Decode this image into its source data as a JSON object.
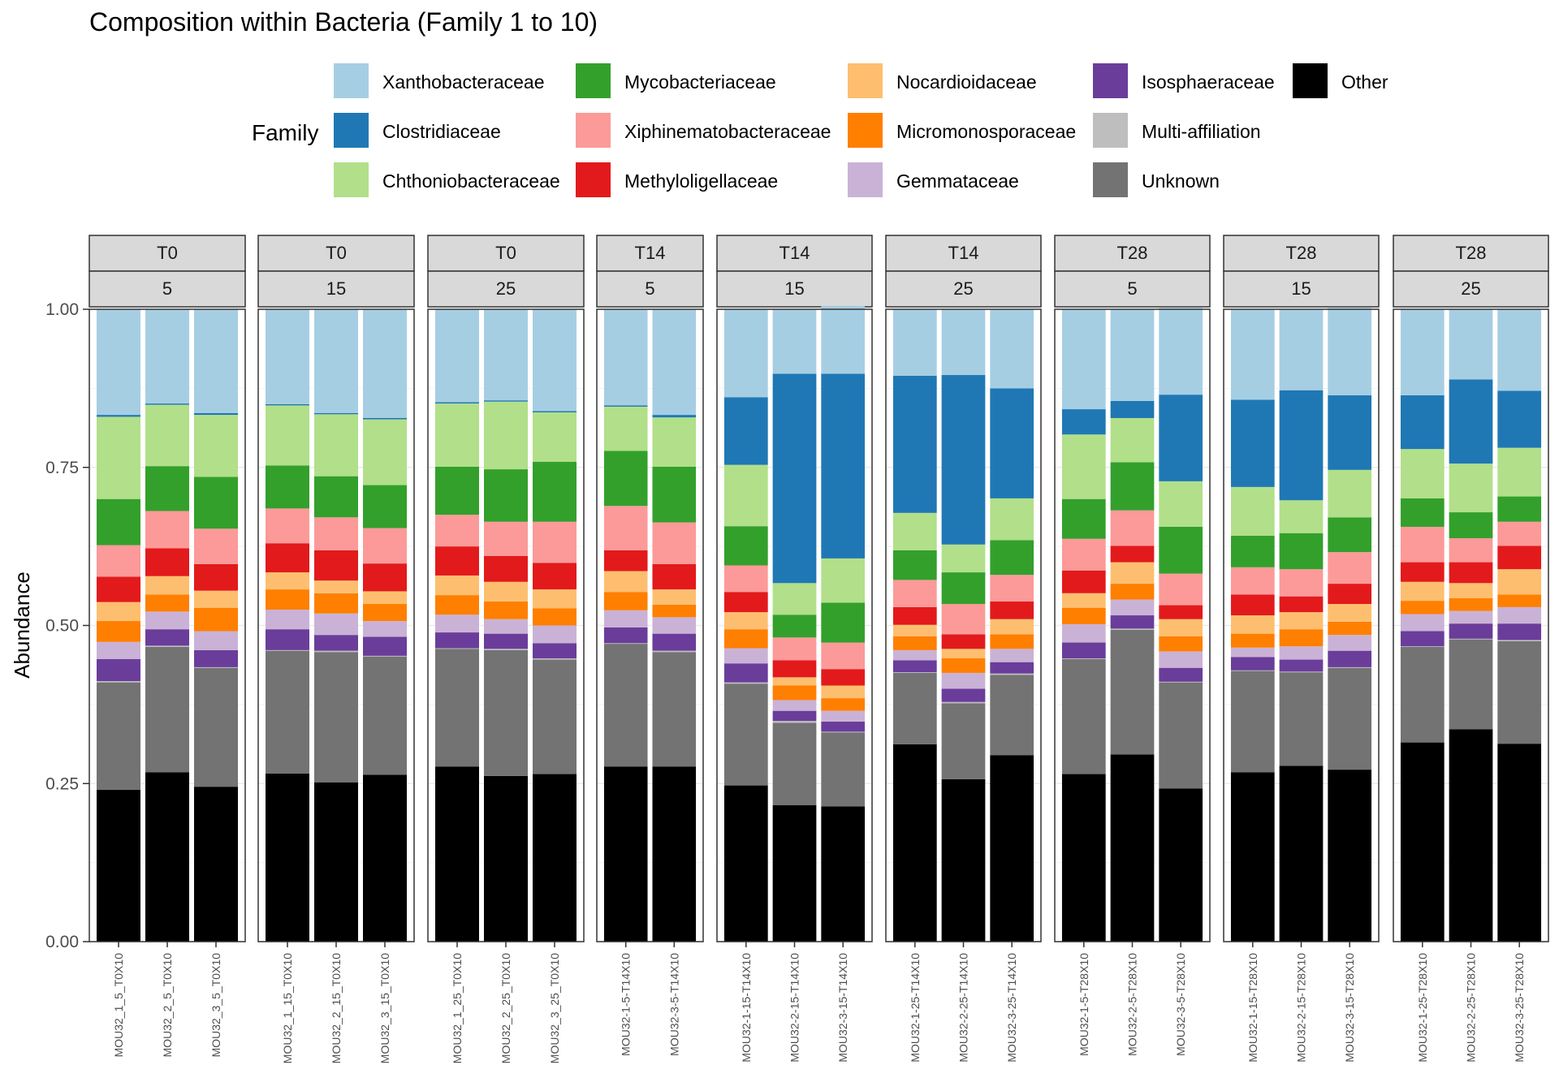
{
  "chart_data": {
    "type": "bar",
    "stacked": true,
    "title": "Composition within Bacteria (Family 1 to 10)",
    "xlabel": "",
    "ylabel": "Abundance",
    "ylim": [
      0,
      1
    ],
    "yticks": [
      0.0,
      0.25,
      0.5,
      0.75,
      1.0
    ],
    "ytick_labels": [
      "0.00",
      "0.25",
      "0.50",
      "0.75",
      "1.00"
    ],
    "grid": true,
    "legend": {
      "title": "Family",
      "placement": "top",
      "columns": [
        [
          "Xanthobacteraceae",
          "Clostridiaceae",
          "Chthoniobacteraceae"
        ],
        [
          "Mycobacteriaceae",
          "Xiphinematobacteraceae",
          "Methyloligellaceae"
        ],
        [
          "Nocardioidaceae",
          "Micromonosporaceae",
          "Gemmataceae"
        ],
        [
          "Isosphaeraceae",
          "Multi-affiliation",
          "Unknown"
        ],
        [
          "Other"
        ]
      ]
    },
    "stack_order_bottom_to_top": [
      "Other",
      "Unknown",
      "Multi-affiliation",
      "Isosphaeraceae",
      "Gemmataceae",
      "Micromonosporaceae",
      "Nocardioidaceae",
      "Methyloligellaceae",
      "Xiphinematobacteraceae",
      "Mycobacteriaceae",
      "Chthoniobacteraceae",
      "Clostridiaceae",
      "Xanthobacteraceae"
    ],
    "colors": {
      "Xanthobacteraceae": "#A6CEE3",
      "Clostridiaceae": "#1F78B4",
      "Chthoniobacteraceae": "#B2DF8A",
      "Mycobacteriaceae": "#33A02C",
      "Xiphinematobacteraceae": "#FB9A99",
      "Methyloligellaceae": "#E31A1C",
      "Nocardioidaceae": "#FDBF6F",
      "Micromonosporaceae": "#FF7F00",
      "Gemmataceae": "#CAB2D6",
      "Isosphaeraceae": "#6A3D9A",
      "Multi-affiliation": "#BEBEBE",
      "Unknown": "#737373",
      "Other": "#000000"
    },
    "panels": [
      {
        "time": "T0",
        "depth": "5",
        "samples": [
          {
            "name": "MOU32_1_5_T0X10",
            "values": {
              "Other": 0.24,
              "Unknown": 0.17,
              "Multi-affiliation": 0.002,
              "Isosphaeraceae": 0.035,
              "Gemmataceae": 0.027,
              "Micromonosporaceae": 0.033,
              "Nocardioidaceae": 0.03,
              "Methyloligellaceae": 0.04,
              "Xiphinematobacteraceae": 0.05,
              "Mycobacteriaceae": 0.073,
              "Chthoniobacteraceae": 0.13,
              "Clostridiaceae": 0.003,
              "Xanthobacteraceae": 0.167
            }
          },
          {
            "name": "MOU32_2_5_T0X10",
            "values": {
              "Other": 0.268,
              "Unknown": 0.198,
              "Multi-affiliation": 0.002,
              "Isosphaeraceae": 0.026,
              "Gemmataceae": 0.028,
              "Micromonosporaceae": 0.027,
              "Nocardioidaceae": 0.029,
              "Methyloligellaceae": 0.044,
              "Xiphinematobacteraceae": 0.059,
              "Mycobacteriaceae": 0.071,
              "Chthoniobacteraceae": 0.097,
              "Clostridiaceae": 0.002,
              "Xanthobacteraceae": 0.149
            }
          },
          {
            "name": "MOU32_3_5_T0X10",
            "values": {
              "Other": 0.245,
              "Unknown": 0.188,
              "Multi-affiliation": 0.001,
              "Isosphaeraceae": 0.027,
              "Gemmataceae": 0.03,
              "Micromonosporaceae": 0.037,
              "Nocardioidaceae": 0.027,
              "Methyloligellaceae": 0.042,
              "Xiphinematobacteraceae": 0.056,
              "Mycobacteriaceae": 0.082,
              "Chthoniobacteraceae": 0.098,
              "Clostridiaceae": 0.003,
              "Xanthobacteraceae": 0.164
            }
          }
        ]
      },
      {
        "time": "T0",
        "depth": "15",
        "samples": [
          {
            "name": "MOU32_1_15_T0X10",
            "values": {
              "Other": 0.266,
              "Unknown": 0.194,
              "Multi-affiliation": 0.001,
              "Isosphaeraceae": 0.033,
              "Gemmataceae": 0.031,
              "Micromonosporaceae": 0.032,
              "Nocardioidaceae": 0.027,
              "Methyloligellaceae": 0.046,
              "Xiphinematobacteraceae": 0.055,
              "Mycobacteriaceae": 0.068,
              "Chthoniobacteraceae": 0.095,
              "Clostridiaceae": 0.002,
              "Xanthobacteraceae": 0.15
            }
          },
          {
            "name": "MOU32_2_15_T0X10",
            "values": {
              "Other": 0.252,
              "Unknown": 0.206,
              "Multi-affiliation": 0.002,
              "Isosphaeraceae": 0.025,
              "Gemmataceae": 0.034,
              "Micromonosporaceae": 0.032,
              "Nocardioidaceae": 0.02,
              "Methyloligellaceae": 0.048,
              "Xiphinematobacteraceae": 0.052,
              "Mycobacteriaceae": 0.065,
              "Chthoniobacteraceae": 0.098,
              "Clostridiaceae": 0.002,
              "Xanthobacteraceae": 0.164
            }
          },
          {
            "name": "MOU32_3_15_T0X10",
            "values": {
              "Other": 0.264,
              "Unknown": 0.187,
              "Multi-affiliation": 0.001,
              "Isosphaeraceae": 0.03,
              "Gemmataceae": 0.025,
              "Micromonosporaceae": 0.027,
              "Nocardioidaceae": 0.02,
              "Methyloligellaceae": 0.044,
              "Xiphinematobacteraceae": 0.056,
              "Mycobacteriaceae": 0.068,
              "Chthoniobacteraceae": 0.104,
              "Clostridiaceae": 0.002,
              "Xanthobacteraceae": 0.172
            }
          }
        ]
      },
      {
        "time": "T0",
        "depth": "25",
        "samples": [
          {
            "name": "MOU32_1_25_T0X10",
            "values": {
              "Other": 0.277,
              "Unknown": 0.186,
              "Multi-affiliation": 0.001,
              "Isosphaeraceae": 0.025,
              "Gemmataceae": 0.028,
              "Micromonosporaceae": 0.031,
              "Nocardioidaceae": 0.031,
              "Methyloligellaceae": 0.046,
              "Xiphinematobacteraceae": 0.05,
              "Mycobacteriaceae": 0.076,
              "Chthoniobacteraceae": 0.1,
              "Clostridiaceae": 0.002,
              "Xanthobacteraceae": 0.147
            }
          },
          {
            "name": "MOU32_2_25_T0X10",
            "values": {
              "Other": 0.262,
              "Unknown": 0.199,
              "Multi-affiliation": 0.002,
              "Isosphaeraceae": 0.024,
              "Gemmataceae": 0.023,
              "Micromonosporaceae": 0.028,
              "Nocardioidaceae": 0.031,
              "Methyloligellaceae": 0.041,
              "Xiphinematobacteraceae": 0.054,
              "Mycobacteriaceae": 0.083,
              "Chthoniobacteraceae": 0.107,
              "Clostridiaceae": 0.002,
              "Xanthobacteraceae": 0.144
            }
          },
          {
            "name": "MOU32_3_25_T0X10",
            "values": {
              "Other": 0.265,
              "Unknown": 0.181,
              "Multi-affiliation": 0.002,
              "Isosphaeraceae": 0.024,
              "Gemmataceae": 0.028,
              "Micromonosporaceae": 0.027,
              "Nocardioidaceae": 0.03,
              "Methyloligellaceae": 0.042,
              "Xiphinematobacteraceae": 0.065,
              "Mycobacteriaceae": 0.095,
              "Chthoniobacteraceae": 0.078,
              "Clostridiaceae": 0.002,
              "Xanthobacteraceae": 0.161
            }
          }
        ]
      },
      {
        "time": "T14",
        "depth": "5",
        "samples": [
          {
            "name": "MOU32-1-5-T14X10",
            "values": {
              "Other": 0.277,
              "Unknown": 0.194,
              "Multi-affiliation": 0.001,
              "Isosphaeraceae": 0.025,
              "Gemmataceae": 0.027,
              "Micromonosporaceae": 0.029,
              "Nocardioidaceae": 0.033,
              "Methyloligellaceae": 0.033,
              "Xiphinematobacteraceae": 0.07,
              "Mycobacteriaceae": 0.087,
              "Chthoniobacteraceae": 0.07,
              "Clostridiaceae": 0.002,
              "Xanthobacteraceae": 0.152
            }
          },
          {
            "name": "MOU32-3-5-T14X10",
            "values": {
              "Other": 0.277,
              "Unknown": 0.181,
              "Multi-affiliation": 0.002,
              "Isosphaeraceae": 0.027,
              "Gemmataceae": 0.026,
              "Micromonosporaceae": 0.02,
              "Nocardioidaceae": 0.024,
              "Methyloligellaceae": 0.04,
              "Xiphinematobacteraceae": 0.066,
              "Mycobacteriaceae": 0.088,
              "Chthoniobacteraceae": 0.078,
              "Clostridiaceae": 0.004,
              "Xanthobacteraceae": 0.167
            }
          }
        ]
      },
      {
        "time": "T14",
        "depth": "15",
        "samples": [
          {
            "name": "MOU32-1-15-T14X10",
            "values": {
              "Other": 0.247,
              "Unknown": 0.161,
              "Multi-affiliation": 0.002,
              "Isosphaeraceae": 0.03,
              "Gemmataceae": 0.024,
              "Micromonosporaceae": 0.03,
              "Nocardioidaceae": 0.027,
              "Methyloligellaceae": 0.032,
              "Xiphinematobacteraceae": 0.042,
              "Mycobacteriaceae": 0.062,
              "Chthoniobacteraceae": 0.097,
              "Clostridiaceae": 0.107,
              "Xanthobacteraceae": 0.139
            }
          },
          {
            "name": "MOU32-2-15-T14X10",
            "values": {
              "Other": 0.216,
              "Unknown": 0.13,
              "Multi-affiliation": 0.003,
              "Isosphaeraceae": 0.016,
              "Gemmataceae": 0.017,
              "Micromonosporaceae": 0.023,
              "Nocardioidaceae": 0.013,
              "Methyloligellaceae": 0.027,
              "Xiphinematobacteraceae": 0.036,
              "Mycobacteriaceae": 0.036,
              "Chthoniobacteraceae": 0.05,
              "Clostridiaceae": 0.331,
              "Xanthobacteraceae": 0.102
            }
          },
          {
            "name": "MOU32-3-15-T14X10",
            "values": {
              "Other": 0.214,
              "Unknown": 0.117,
              "Multi-affiliation": 0.001,
              "Isosphaeraceae": 0.016,
              "Gemmataceae": 0.017,
              "Micromonosporaceae": 0.02,
              "Nocardioidaceae": 0.02,
              "Methyloligellaceae": 0.026,
              "Xiphinematobacteraceae": 0.042,
              "Mycobacteriaceae": 0.063,
              "Chthoniobacteraceae": 0.07,
              "Clostridiaceae": 0.292,
              "Xanthobacteraceae": 0.107
            }
          }
        ]
      },
      {
        "time": "T14",
        "depth": "25",
        "samples": [
          {
            "name": "MOU32-1-25-T14X10",
            "values": {
              "Other": 0.312,
              "Unknown": 0.113,
              "Multi-affiliation": 0.001,
              "Isosphaeraceae": 0.019,
              "Gemmataceae": 0.016,
              "Micromonosporaceae": 0.022,
              "Nocardioidaceae": 0.018,
              "Methyloligellaceae": 0.028,
              "Xiphinematobacteraceae": 0.043,
              "Mycobacteriaceae": 0.047,
              "Chthoniobacteraceae": 0.059,
              "Clostridiaceae": 0.217,
              "Xanthobacteraceae": 0.105
            }
          },
          {
            "name": "MOU32-2-25-T14X10",
            "values": {
              "Other": 0.257,
              "Unknown": 0.12,
              "Multi-affiliation": 0.002,
              "Isosphaeraceae": 0.021,
              "Gemmataceae": 0.025,
              "Micromonosporaceae": 0.023,
              "Nocardioidaceae": 0.015,
              "Methyloligellaceae": 0.023,
              "Xiphinematobacteraceae": 0.048,
              "Mycobacteriaceae": 0.05,
              "Chthoniobacteraceae": 0.044,
              "Clostridiaceae": 0.268,
              "Xanthobacteraceae": 0.104
            }
          },
          {
            "name": "MOU32-3-25-T14X10",
            "values": {
              "Other": 0.295,
              "Unknown": 0.127,
              "Multi-affiliation": 0.002,
              "Isosphaeraceae": 0.018,
              "Gemmataceae": 0.021,
              "Micromonosporaceae": 0.023,
              "Nocardioidaceae": 0.024,
              "Methyloligellaceae": 0.028,
              "Xiphinematobacteraceae": 0.042,
              "Mycobacteriaceae": 0.055,
              "Chthoniobacteraceae": 0.066,
              "Clostridiaceae": 0.174,
              "Xanthobacteraceae": 0.125
            }
          }
        ]
      },
      {
        "time": "T28",
        "depth": "5",
        "samples": [
          {
            "name": "MOU32-1-5-T28X10",
            "values": {
              "Other": 0.265,
              "Unknown": 0.182,
              "Multi-affiliation": 0.001,
              "Isosphaeraceae": 0.025,
              "Gemmataceae": 0.029,
              "Micromonosporaceae": 0.026,
              "Nocardioidaceae": 0.023,
              "Methyloligellaceae": 0.036,
              "Xiphinematobacteraceae": 0.05,
              "Mycobacteriaceae": 0.063,
              "Chthoniobacteraceae": 0.102,
              "Clostridiaceae": 0.04,
              "Xanthobacteraceae": 0.158
            }
          },
          {
            "name": "MOU32-2-5-T28X10",
            "values": {
              "Other": 0.296,
              "Unknown": 0.197,
              "Multi-affiliation": 0.002,
              "Isosphaeraceae": 0.021,
              "Gemmataceae": 0.025,
              "Micromonosporaceae": 0.025,
              "Nocardioidaceae": 0.034,
              "Methyloligellaceae": 0.026,
              "Xiphinematobacteraceae": 0.056,
              "Mycobacteriaceae": 0.076,
              "Chthoniobacteraceae": 0.07,
              "Clostridiaceae": 0.027,
              "Xanthobacteraceae": 0.145
            }
          },
          {
            "name": "MOU32-3-5-T28X10",
            "values": {
              "Other": 0.242,
              "Unknown": 0.168,
              "Multi-affiliation": 0.001,
              "Isosphaeraceae": 0.022,
              "Gemmataceae": 0.026,
              "Micromonosporaceae": 0.024,
              "Nocardioidaceae": 0.027,
              "Methyloligellaceae": 0.022,
              "Xiphinematobacteraceae": 0.05,
              "Mycobacteriaceae": 0.074,
              "Chthoniobacteraceae": 0.072,
              "Clostridiaceae": 0.137,
              "Xanthobacteraceae": 0.137
            }
          }
        ]
      },
      {
        "time": "T28",
        "depth": "15",
        "samples": [
          {
            "name": "MOU32-1-15-T28X10",
            "values": {
              "Other": 0.268,
              "Unknown": 0.16,
              "Multi-affiliation": 0.001,
              "Isosphaeraceae": 0.021,
              "Gemmataceae": 0.015,
              "Micromonosporaceae": 0.022,
              "Nocardioidaceae": 0.029,
              "Methyloligellaceae": 0.033,
              "Xiphinematobacteraceae": 0.043,
              "Mycobacteriaceae": 0.05,
              "Chthoniobacteraceae": 0.077,
              "Clostridiaceae": 0.138,
              "Xanthobacteraceae": 0.143
            }
          },
          {
            "name": "MOU32-2-15-T28X10",
            "values": {
              "Other": 0.278,
              "Unknown": 0.148,
              "Multi-affiliation": 0.001,
              "Isosphaeraceae": 0.019,
              "Gemmataceae": 0.021,
              "Micromonosporaceae": 0.027,
              "Nocardioidaceae": 0.027,
              "Methyloligellaceae": 0.025,
              "Xiphinematobacteraceae": 0.043,
              "Mycobacteriaceae": 0.057,
              "Chthoniobacteraceae": 0.052,
              "Clostridiaceae": 0.174,
              "Xanthobacteraceae": 0.128
            }
          },
          {
            "name": "MOU32-3-15-T28X10",
            "values": {
              "Other": 0.272,
              "Unknown": 0.161,
              "Multi-affiliation": 0.001,
              "Isosphaeraceae": 0.026,
              "Gemmataceae": 0.025,
              "Micromonosporaceae": 0.021,
              "Nocardioidaceae": 0.028,
              "Methyloligellaceae": 0.032,
              "Xiphinematobacteraceae": 0.05,
              "Mycobacteriaceae": 0.055,
              "Chthoniobacteraceae": 0.075,
              "Clostridiaceae": 0.118,
              "Xanthobacteraceae": 0.138
            }
          }
        ]
      },
      {
        "time": "T28",
        "depth": "25",
        "samples": [
          {
            "name": "MOU32-1-25-T28X10",
            "values": {
              "Other": 0.315,
              "Unknown": 0.151,
              "Multi-affiliation": 0.001,
              "Isosphaeraceae": 0.024,
              "Gemmataceae": 0.027,
              "Micromonosporaceae": 0.021,
              "Nocardioidaceae": 0.03,
              "Methyloligellaceae": 0.031,
              "Xiphinematobacteraceae": 0.056,
              "Mycobacteriaceae": 0.045,
              "Chthoniobacteraceae": 0.078,
              "Clostridiaceae": 0.085,
              "Xanthobacteraceae": 0.136
            }
          },
          {
            "name": "MOU32-2-25-T28X10",
            "values": {
              "Other": 0.336,
              "Unknown": 0.142,
              "Multi-affiliation": 0.001,
              "Isosphaeraceae": 0.024,
              "Gemmataceae": 0.02,
              "Micromonosporaceae": 0.02,
              "Nocardioidaceae": 0.024,
              "Methyloligellaceae": 0.033,
              "Xiphinematobacteraceae": 0.038,
              "Mycobacteriaceae": 0.041,
              "Chthoniobacteraceae": 0.077,
              "Clostridiaceae": 0.133,
              "Xanthobacteraceae": 0.111
            }
          },
          {
            "name": "MOU32-3-25-T28X10",
            "values": {
              "Other": 0.313,
              "Unknown": 0.162,
              "Multi-affiliation": 0.002,
              "Isosphaeraceae": 0.026,
              "Gemmataceae": 0.026,
              "Micromonosporaceae": 0.02,
              "Nocardioidaceae": 0.04,
              "Methyloligellaceae": 0.037,
              "Xiphinematobacteraceae": 0.038,
              "Mycobacteriaceae": 0.04,
              "Chthoniobacteraceae": 0.077,
              "Clostridiaceae": 0.09,
              "Xanthobacteraceae": 0.129
            }
          }
        ]
      }
    ]
  }
}
